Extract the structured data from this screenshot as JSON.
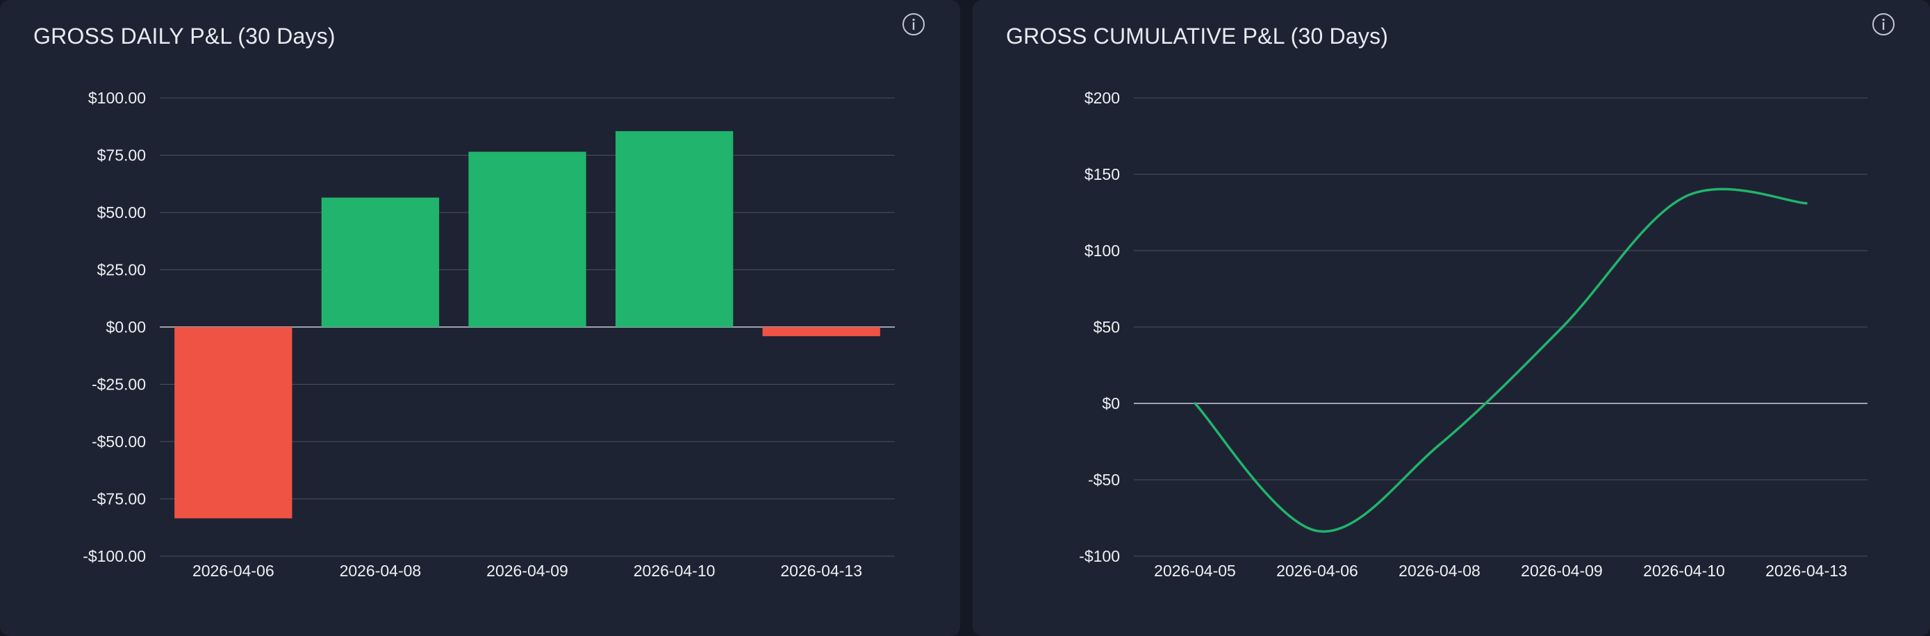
{
  "colors": {
    "positive": "#21b46c",
    "negative": "#ef5344",
    "grid": "#4a5062",
    "zero": "#c8ccd6",
    "text": "#eef0f4"
  },
  "icons": {
    "info": "info-icon"
  },
  "chart_data": [
    {
      "type": "bar",
      "title": "GROSS DAILY P&L (30 Days)",
      "categories": [
        "2026-04-06",
        "2026-04-08",
        "2026-04-09",
        "2026-04-10",
        "2026-04-13"
      ],
      "values": [
        -83.5,
        56.5,
        76.5,
        85.5,
        -4
      ],
      "ylim": [
        -100,
        100
      ],
      "yticks": [
        100,
        75,
        50,
        25,
        0,
        -25,
        -50,
        -75,
        -100
      ],
      "ytick_labels": [
        "$100.00",
        "$75.00",
        "$50.00",
        "$25.00",
        "$0.00",
        "-$25.00",
        "-$50.00",
        "-$75.00",
        "-$100.00"
      ],
      "grid": true
    },
    {
      "type": "line",
      "title": "GROSS CUMULATIVE P&L (30 Days)",
      "x": [
        "2026-04-05",
        "2026-04-06",
        "2026-04-08",
        "2026-04-09",
        "2026-04-10",
        "2026-04-13"
      ],
      "values": [
        0,
        -83.5,
        -27,
        49.5,
        135,
        131
      ],
      "ylim": [
        -100,
        200
      ],
      "yticks": [
        200,
        150,
        100,
        50,
        0,
        -50,
        -100
      ],
      "ytick_labels": [
        "$200",
        "$150",
        "$100",
        "$50",
        "$0",
        "-$50",
        "-$100"
      ],
      "grid": true
    }
  ]
}
